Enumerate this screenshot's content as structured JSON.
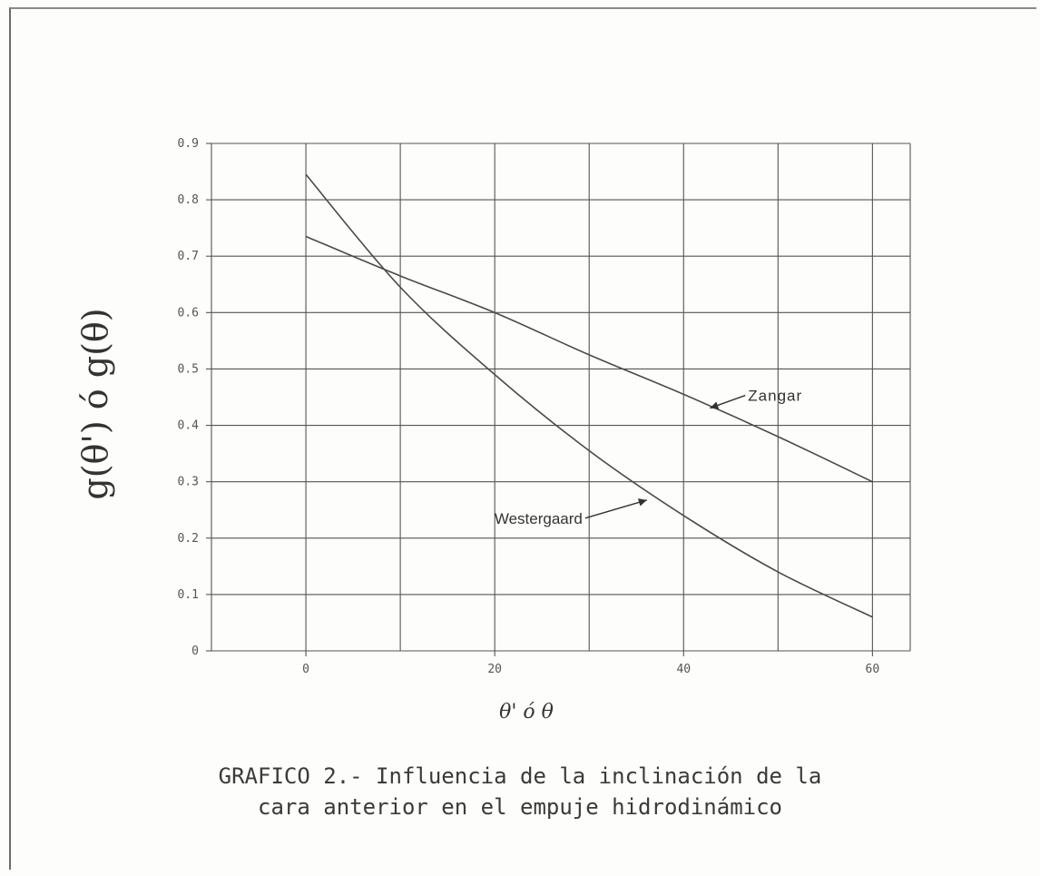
{
  "chart_data": {
    "type": "line",
    "title": "",
    "xlabel": "θ' ó θ",
    "ylabel": "g(θ') ó g(θ)",
    "xlim": [
      -10,
      64
    ],
    "ylim": [
      0,
      0.9
    ],
    "x_ticks": [
      "0",
      "20",
      "40",
      "60"
    ],
    "x_tick_values": [
      0,
      20,
      40,
      60
    ],
    "y_ticks": [
      "0",
      "0.1",
      "0.2",
      "0.3",
      "0.4",
      "0.5",
      "0.6",
      "0.7",
      "0.8",
      "0.9"
    ],
    "y_tick_values": [
      0,
      0.1,
      0.2,
      0.3,
      0.4,
      0.5,
      0.6,
      0.7,
      0.8,
      0.9
    ],
    "grid": true,
    "series": [
      {
        "name": "Zangar",
        "x": [
          0,
          10,
          20,
          30,
          40,
          50,
          60
        ],
        "y": [
          0.735,
          0.665,
          0.6,
          0.525,
          0.455,
          0.38,
          0.3
        ]
      },
      {
        "name": "Westergaard",
        "x": [
          0,
          10,
          20,
          30,
          40,
          50,
          60
        ],
        "y": [
          0.845,
          0.645,
          0.49,
          0.355,
          0.24,
          0.14,
          0.06
        ]
      }
    ]
  },
  "caption": {
    "line1": "GRAFICO 2.- Influencia de la inclinación de la",
    "line2": "cara anterior en el empuje hidrodinámico"
  }
}
